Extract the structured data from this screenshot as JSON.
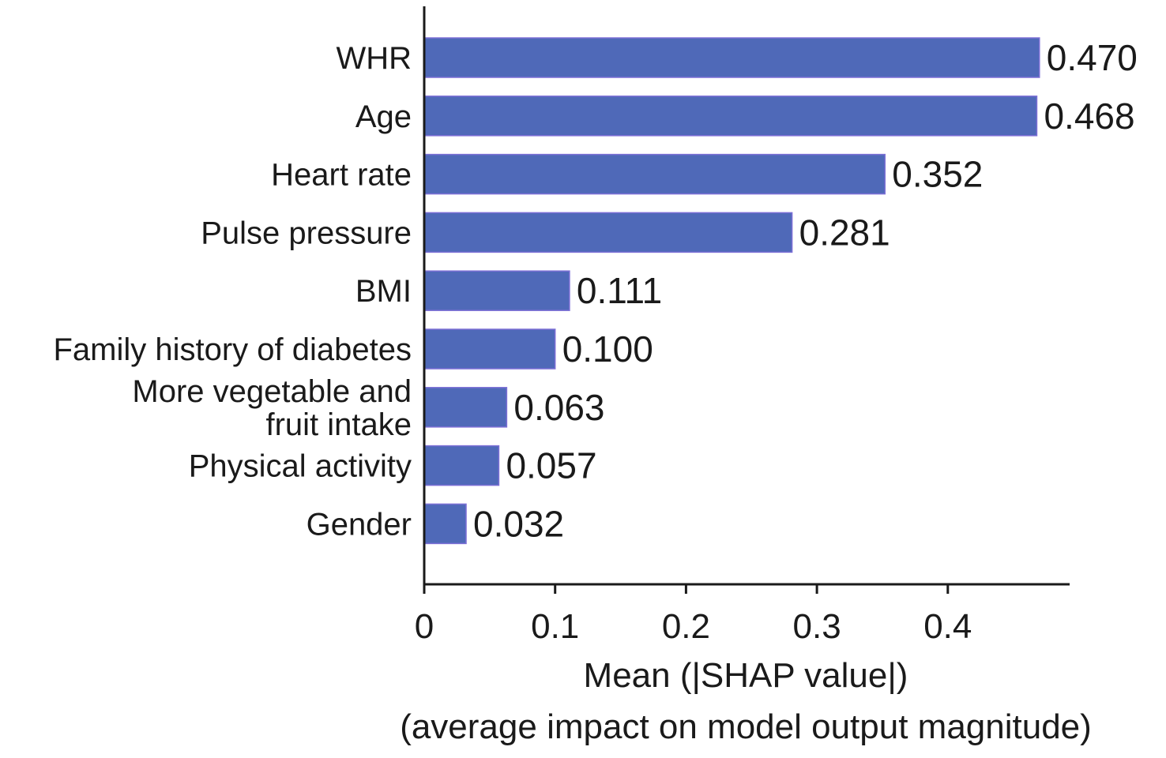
{
  "chart_data": {
    "type": "bar",
    "orientation": "horizontal",
    "categories": [
      "WHR",
      "Age",
      "Heart rate",
      "Pulse pressure",
      "BMI",
      "Family history of diabetes",
      "More vegetable and fruit intake",
      "Physical activity",
      "Gender"
    ],
    "category_lines": [
      [
        "WHR"
      ],
      [
        "Age"
      ],
      [
        "Heart rate"
      ],
      [
        "Pulse pressure"
      ],
      [
        "BMI"
      ],
      [
        "Family history of diabetes"
      ],
      [
        "More vegetable and",
        "fruit intake"
      ],
      [
        "Physical activity"
      ],
      [
        "Gender"
      ]
    ],
    "values": [
      0.47,
      0.468,
      0.352,
      0.281,
      0.111,
      0.1,
      0.063,
      0.057,
      0.032
    ],
    "value_labels": [
      "0.470",
      "0.468",
      "0.352",
      "0.281",
      "0.111",
      "0.100",
      "0.063",
      "0.057",
      "0.032"
    ],
    "xlabel": "Mean (|SHAP value|)",
    "xlabel_sub": "(average impact on model output magnitude)",
    "ylabel": "",
    "title": "",
    "xlim": [
      0,
      0.493
    ],
    "xticks": [
      0,
      0.1,
      0.2,
      0.3,
      0.4
    ],
    "xtick_labels": [
      "0",
      "0.1",
      "0.2",
      "0.3",
      "0.4"
    ],
    "grid": false,
    "legend": "none",
    "bar_color": "#4f69b8",
    "bar_edge_color": "#7c6fd6"
  }
}
